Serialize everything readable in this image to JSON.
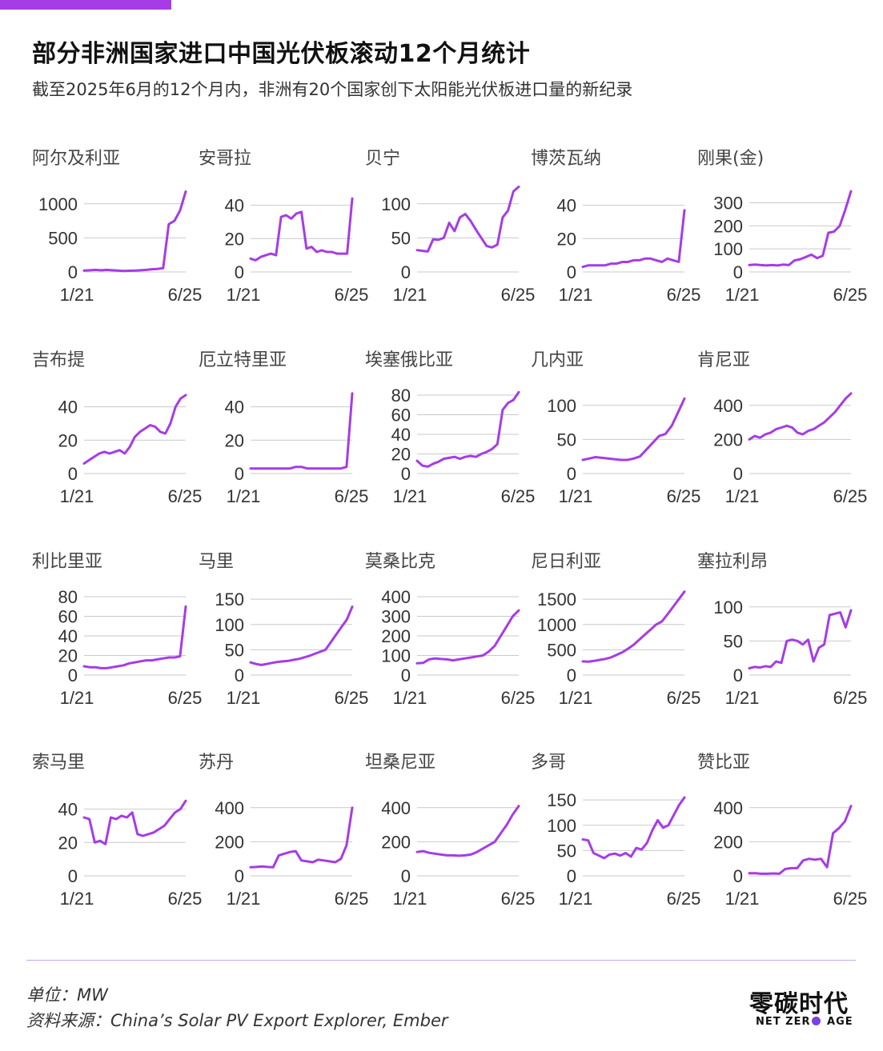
{
  "header": {
    "title": "部分非洲国家进口中国光伏板滚动12个月统计",
    "subtitle": "截至2025年6月的12个月内，非洲有20个国家创下太阳能光伏板进口量的新纪录"
  },
  "colors": {
    "accent": "#a63ce6",
    "grid": "#c9c9c9"
  },
  "footer": {
    "unit": "单位：MW",
    "source": "资料来源：China’s Solar PV Export Explorer, Ember",
    "logo_cn": "零碳时代",
    "logo_en_left": "NET ZER",
    "logo_en_right": " AGE"
  },
  "chart_data": [
    {
      "type": "line",
      "title": "阿尔及利亚",
      "x_start": "1/21",
      "x_end": "6/25",
      "yticks": [
        0,
        500,
        1000
      ],
      "ylim": [
        0,
        1150
      ],
      "values": [
        20,
        25,
        30,
        25,
        30,
        25,
        20,
        15,
        18,
        20,
        25,
        30,
        40,
        45,
        55,
        700,
        750,
        900,
        1180
      ]
    },
    {
      "type": "line",
      "title": "安哥拉",
      "x_start": "1/21",
      "x_end": "6/25",
      "yticks": [
        0,
        20,
        40
      ],
      "ylim": [
        0,
        47
      ],
      "values": [
        8,
        7,
        9,
        10,
        11,
        10,
        33,
        34,
        32,
        35,
        36,
        14,
        15,
        12,
        13,
        12,
        12,
        11,
        11,
        11,
        44
      ]
    },
    {
      "type": "line",
      "title": "贝宁",
      "x_start": "1/21",
      "x_end": "6/25",
      "yticks": [
        0,
        50,
        100
      ],
      "ylim": [
        0,
        115
      ],
      "values": [
        32,
        31,
        30,
        48,
        47,
        50,
        72,
        60,
        80,
        85,
        75,
        62,
        50,
        38,
        36,
        40,
        80,
        90,
        118,
        125
      ]
    },
    {
      "type": "line",
      "title": "博茨瓦纳",
      "x_start": "1/21",
      "x_end": "6/25",
      "yticks": [
        0,
        20,
        40
      ],
      "ylim": [
        0,
        47
      ],
      "values": [
        3,
        4,
        4,
        4,
        4,
        5,
        5,
        6,
        6,
        7,
        7,
        8,
        8,
        7,
        6,
        8,
        7,
        6,
        37
      ]
    },
    {
      "type": "line",
      "title": "刚果(金)",
      "x_start": "1/21",
      "x_end": "6/25",
      "yticks": [
        0,
        100,
        200,
        300
      ],
      "ylim": [
        0,
        340
      ],
      "values": [
        30,
        32,
        30,
        28,
        30,
        28,
        32,
        30,
        50,
        55,
        65,
        75,
        60,
        70,
        170,
        175,
        200,
        270,
        350
      ]
    },
    {
      "type": "line",
      "title": "吉布提",
      "x_start": "1/21",
      "x_end": "6/25",
      "yticks": [
        0,
        20,
        40
      ],
      "ylim": [
        0,
        47
      ],
      "values": [
        6,
        8,
        10,
        12,
        13,
        12,
        13,
        14,
        12,
        16,
        22,
        25,
        27,
        29,
        28,
        25,
        24,
        30,
        40,
        45,
        47
      ]
    },
    {
      "type": "line",
      "title": "厄立特里亚",
      "x_start": "1/21",
      "x_end": "6/25",
      "yticks": [
        0,
        20,
        40
      ],
      "ylim": [
        0,
        47
      ],
      "values": [
        3,
        3,
        3,
        3,
        3,
        3,
        3,
        3,
        4,
        4,
        3,
        3,
        3,
        3,
        3,
        3,
        3,
        4,
        48
      ]
    },
    {
      "type": "line",
      "title": "埃塞俄比亚",
      "x_start": "1/21",
      "x_end": "6/25",
      "yticks": [
        0,
        20,
        40,
        60,
        80
      ],
      "ylim": [
        0,
        80
      ],
      "values": [
        13,
        8,
        7,
        10,
        12,
        15,
        16,
        17,
        15,
        17,
        18,
        17,
        20,
        22,
        25,
        30,
        65,
        72,
        75,
        83
      ]
    },
    {
      "type": "line",
      "title": "几内亚",
      "x_start": "1/21",
      "x_end": "6/25",
      "yticks": [
        0,
        50,
        100
      ],
      "ylim": [
        0,
        115
      ],
      "values": [
        20,
        22,
        24,
        23,
        22,
        21,
        20,
        20,
        22,
        25,
        35,
        45,
        55,
        58,
        70,
        90,
        110
      ]
    },
    {
      "type": "line",
      "title": "肯尼亚",
      "x_start": "1/21",
      "x_end": "6/25",
      "yticks": [
        0,
        200,
        400
      ],
      "ylim": [
        0,
        460
      ],
      "values": [
        200,
        220,
        210,
        230,
        240,
        260,
        270,
        280,
        270,
        240,
        230,
        250,
        260,
        280,
        300,
        330,
        360,
        400,
        440,
        470
      ]
    },
    {
      "type": "line",
      "title": "利比里亚",
      "x_start": "1/21",
      "x_end": "6/25",
      "yticks": [
        0,
        20,
        40,
        60,
        80
      ],
      "ylim": [
        0,
        80
      ],
      "values": [
        9,
        8,
        8,
        7,
        7,
        8,
        9,
        10,
        12,
        13,
        14,
        15,
        15,
        16,
        17,
        18,
        18,
        19,
        70
      ]
    },
    {
      "type": "line",
      "title": "马里",
      "x_start": "1/21",
      "x_end": "6/25",
      "yticks": [
        0,
        50,
        100,
        150
      ],
      "ylim": [
        0,
        155
      ],
      "values": [
        25,
        22,
        20,
        22,
        24,
        26,
        27,
        28,
        30,
        32,
        35,
        38,
        42,
        46,
        50,
        65,
        80,
        95,
        110,
        135
      ]
    },
    {
      "type": "line",
      "title": "莫桑比克",
      "x_start": "1/21",
      "x_end": "6/25",
      "yticks": [
        0,
        100,
        200,
        300,
        400
      ],
      "ylim": [
        0,
        400
      ],
      "values": [
        60,
        62,
        80,
        85,
        82,
        80,
        75,
        80,
        85,
        90,
        95,
        100,
        120,
        150,
        200,
        250,
        300,
        330
      ]
    },
    {
      "type": "line",
      "title": "尼日利亚",
      "x_start": "1/21",
      "x_end": "6/25",
      "yticks": [
        0,
        500,
        1000,
        1500
      ],
      "ylim": [
        0,
        1550
      ],
      "values": [
        270,
        265,
        280,
        300,
        320,
        350,
        400,
        450,
        520,
        600,
        700,
        800,
        900,
        1000,
        1060,
        1200,
        1350,
        1500,
        1650
      ]
    },
    {
      "type": "line",
      "title": "塞拉利昂",
      "x_start": "1/21",
      "x_end": "6/25",
      "yticks": [
        0,
        50,
        100
      ],
      "ylim": [
        0,
        115
      ],
      "values": [
        10,
        12,
        11,
        13,
        12,
        20,
        18,
        50,
        52,
        50,
        45,
        52,
        20,
        40,
        45,
        88,
        90,
        92,
        70,
        95
      ]
    },
    {
      "type": "line",
      "title": "索马里",
      "x_start": "1/21",
      "x_end": "6/25",
      "yticks": [
        0,
        20,
        40
      ],
      "ylim": [
        0,
        47
      ],
      "values": [
        35,
        34,
        20,
        21,
        19,
        35,
        34,
        36,
        35,
        38,
        25,
        24,
        25,
        26,
        28,
        30,
        34,
        38,
        40,
        45
      ]
    },
    {
      "type": "line",
      "title": "苏丹",
      "x_start": "1/21",
      "x_end": "6/25",
      "yticks": [
        0,
        200,
        400
      ],
      "ylim": [
        0,
        460
      ],
      "values": [
        50,
        52,
        55,
        52,
        50,
        120,
        130,
        140,
        145,
        90,
        85,
        80,
        95,
        90,
        85,
        80,
        100,
        180,
        400
      ]
    },
    {
      "type": "line",
      "title": "坦桑尼亚",
      "x_start": "1/21",
      "x_end": "6/25",
      "yticks": [
        0,
        200,
        400
      ],
      "ylim": [
        0,
        460
      ],
      "values": [
        140,
        145,
        135,
        130,
        125,
        120,
        120,
        118,
        120,
        125,
        140,
        160,
        180,
        200,
        250,
        300,
        360,
        410
      ]
    },
    {
      "type": "line",
      "title": "多哥",
      "x_start": "1/21",
      "x_end": "6/25",
      "yticks": [
        0,
        50,
        100,
        150
      ],
      "ylim": [
        0,
        155
      ],
      "values": [
        72,
        70,
        45,
        40,
        35,
        42,
        44,
        40,
        45,
        38,
        55,
        52,
        65,
        90,
        110,
        95,
        100,
        120,
        140,
        155
      ]
    },
    {
      "type": "line",
      "title": "赞比亚",
      "x_start": "1/21",
      "x_end": "6/25",
      "yticks": [
        0,
        200,
        400
      ],
      "ylim": [
        0,
        460
      ],
      "values": [
        15,
        15,
        12,
        12,
        14,
        12,
        40,
        45,
        45,
        90,
        100,
        95,
        100,
        50,
        250,
        280,
        320,
        410
      ]
    }
  ]
}
